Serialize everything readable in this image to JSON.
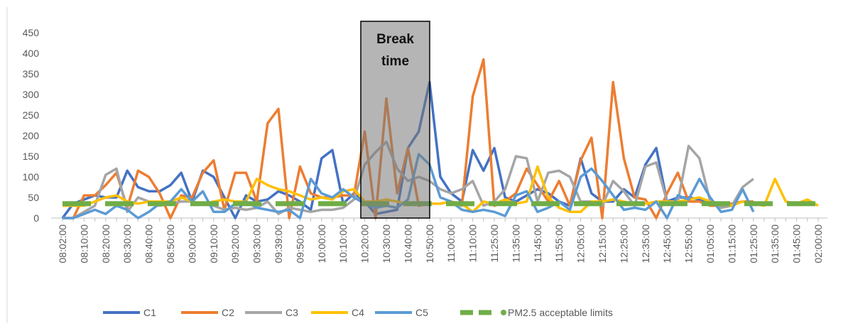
{
  "chart_data": {
    "type": "line",
    "annotation": "Break time",
    "categories": [
      "08:02:00",
      null,
      "08:10:00",
      null,
      "08:20:00",
      null,
      "08:30:00",
      null,
      "08:40:00",
      null,
      "08:50:00",
      null,
      "09:00:00",
      null,
      "09:10:00",
      null,
      "09:20:00",
      null,
      "09:30:00",
      null,
      "09:39:00",
      null,
      "09:50:00",
      null,
      "10:00:00",
      null,
      "10:10:00",
      null,
      "10:20:00",
      null,
      "10:30:00",
      null,
      "10:40:00",
      null,
      "10:50:00",
      null,
      "11:00:00",
      null,
      "11:10:00",
      null,
      "11:25:00",
      null,
      "11:35:00",
      null,
      "11:45:00",
      null,
      "11:55:00",
      null,
      "12:05:00",
      null,
      "12:15:00",
      null,
      "12:25:00",
      null,
      "12:35:00",
      null,
      "12:45:00",
      null,
      "12:55:00",
      null,
      "01:05:00",
      null,
      "01:15:00",
      null,
      "01:25:00",
      null,
      "01:35:00",
      null,
      "01:45:00",
      null,
      "02:00:00"
    ],
    "series": [
      {
        "name": "C1",
        "color": "#4472c4",
        "values": [
          0,
          35,
          45,
          55,
          50,
          50,
          115,
          75,
          65,
          65,
          80,
          110,
          40,
          115,
          100,
          50,
          0,
          55,
          40,
          45,
          65,
          55,
          40,
          20,
          145,
          165,
          35,
          60,
          40,
          10,
          15,
          20,
          170,
          210,
          330,
          100,
          60,
          40,
          165,
          115,
          170,
          50,
          40,
          55,
          70,
          60,
          40,
          30,
          145,
          60,
          40,
          40,
          70,
          50,
          130,
          170,
          40,
          50,
          50,
          45,
          40,
          30,
          35,
          40,
          40,
          null,
          null,
          null,
          null,
          null,
          null
        ]
      },
      {
        "name": "C2",
        "color": "#ed7d31",
        "values": [
          0,
          0,
          55,
          55,
          80,
          110,
          25,
          115,
          100,
          60,
          0,
          55,
          50,
          110,
          140,
          20,
          110,
          110,
          40,
          230,
          265,
          0,
          125,
          60,
          50,
          50,
          55,
          55,
          210,
          0,
          290,
          60,
          170,
          30,
          35,
          35,
          40,
          30,
          295,
          385,
          30,
          40,
          60,
          120,
          80,
          40,
          90,
          30,
          140,
          195,
          0,
          330,
          145,
          50,
          45,
          0,
          60,
          110,
          40,
          40,
          30,
          30,
          35,
          40,
          40,
          null,
          null,
          null,
          null,
          null,
          null
        ]
      },
      {
        "name": "C3",
        "color": "#a5a5a5",
        "values": [
          0,
          0,
          15,
          30,
          105,
          120,
          15,
          50,
          40,
          30,
          35,
          40,
          40,
          35,
          30,
          20,
          25,
          20,
          25,
          40,
          10,
          25,
          20,
          15,
          20,
          20,
          25,
          45,
          130,
          160,
          185,
          120,
          90,
          100,
          90,
          70,
          60,
          70,
          90,
          30,
          40,
          70,
          150,
          145,
          40,
          110,
          115,
          100,
          40,
          40,
          30,
          90,
          65,
          30,
          125,
          135,
          40,
          40,
          175,
          145,
          40,
          25,
          30,
          75,
          95,
          null,
          null,
          null,
          null,
          null,
          null
        ]
      },
      {
        "name": "C4",
        "color": "#ffc000",
        "values": [
          30,
          30,
          30,
          40,
          50,
          55,
          40,
          35,
          40,
          40,
          40,
          50,
          40,
          35,
          40,
          45,
          40,
          40,
          95,
          80,
          70,
          65,
          55,
          45,
          50,
          45,
          65,
          70,
          40,
          40,
          45,
          40,
          35,
          35,
          35,
          35,
          40,
          35,
          15,
          40,
          35,
          45,
          35,
          40,
          125,
          50,
          25,
          15,
          15,
          40,
          40,
          45,
          40,
          35,
          35,
          40,
          40,
          40,
          45,
          50,
          40,
          35,
          30,
          40,
          35,
          30,
          95,
          40,
          35,
          45,
          30
        ]
      },
      {
        "name": "C5",
        "color": "#5b9bd5",
        "values": [
          0,
          0,
          10,
          20,
          10,
          30,
          20,
          0,
          15,
          35,
          40,
          70,
          40,
          65,
          15,
          15,
          35,
          40,
          25,
          20,
          15,
          20,
          0,
          95,
          60,
          50,
          70,
          50,
          35,
          25,
          30,
          25,
          45,
          155,
          130,
          50,
          40,
          20,
          15,
          20,
          15,
          5,
          55,
          65,
          15,
          25,
          40,
          20,
          100,
          120,
          90,
          55,
          20,
          25,
          20,
          40,
          0,
          55,
          45,
          95,
          50,
          15,
          20,
          70,
          15,
          null,
          null,
          null,
          null,
          null,
          null
        ]
      },
      {
        "name": "PM2.5 acceptable limits",
        "color": "#70ad47",
        "dashed": true,
        "values": [
          35,
          35,
          35,
          35,
          35,
          35,
          35,
          35,
          35,
          35,
          35,
          35,
          35,
          35,
          35,
          35,
          35,
          35,
          35,
          35,
          35,
          35,
          35,
          35,
          35,
          35,
          35,
          35,
          35,
          35,
          35,
          35,
          35,
          35,
          35,
          35,
          35,
          35,
          35,
          35,
          35,
          35,
          35,
          35,
          35,
          35,
          35,
          35,
          35,
          35,
          35,
          35,
          35,
          35,
          35,
          35,
          35,
          35,
          35,
          35,
          35,
          35,
          35,
          35,
          35,
          35,
          35,
          35,
          35,
          35,
          35
        ]
      }
    ],
    "ylim": [
      0,
      450
    ],
    "yticks": [
      0,
      50,
      100,
      150,
      200,
      250,
      300,
      350,
      400,
      450
    ],
    "grid": false,
    "legend": "bottom"
  }
}
